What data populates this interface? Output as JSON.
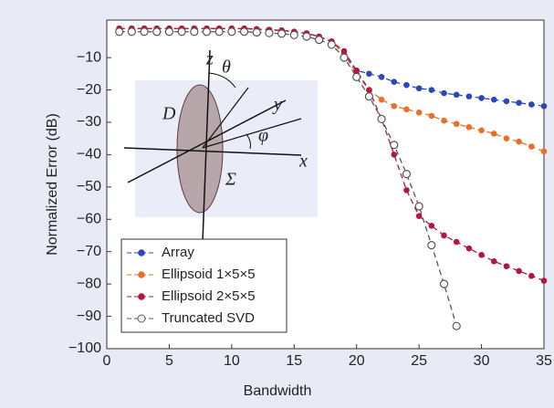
{
  "chart_data": {
    "type": "line",
    "x_label": "Bandwidth",
    "y_label": "Normalized Error (dB)",
    "x": [
      1,
      2,
      3,
      4,
      5,
      6,
      7,
      8,
      9,
      10,
      11,
      12,
      13,
      14,
      15,
      16,
      17,
      18,
      19,
      20,
      21,
      22,
      23,
      24,
      25,
      26,
      27,
      28,
      29,
      30,
      31,
      32,
      33,
      34,
      35
    ],
    "series": [
      {
        "name": "Array",
        "color": "#2b48b8",
        "marker": "filled",
        "values": [
          -1,
          -1,
          -1,
          -1,
          -1,
          -1,
          -1,
          -1,
          -1,
          -1,
          -1,
          -1.2,
          -1.4,
          -1.6,
          -2,
          -2.5,
          -3.5,
          -5,
          -9,
          -14,
          -15,
          -16,
          -17.5,
          -18.5,
          -19.5,
          -20,
          -21,
          -21.5,
          -22,
          -22.5,
          -23,
          -23.5,
          -24,
          -24.5,
          -25
        ]
      },
      {
        "name": "Ellipsoid 1×5×5",
        "color": "#e8702a",
        "marker": "filled",
        "values": [
          -1,
          -1,
          -1,
          -1,
          -1,
          -1,
          -1,
          -1,
          -1,
          -1,
          -1,
          -1.2,
          -1.4,
          -1.6,
          -2,
          -2.5,
          -3.5,
          -5,
          -9,
          -15,
          -20,
          -23,
          -25,
          -26,
          -27,
          -28,
          -29.5,
          -30.5,
          -31.5,
          -32.5,
          -33.5,
          -35,
          -36,
          -37.5,
          -39
        ]
      },
      {
        "name": "Ellipsoid 2×5×5",
        "color": "#b3173e",
        "marker": "filled",
        "values": [
          -1,
          -1,
          -1,
          -1,
          -1,
          -1,
          -1,
          -1,
          -1,
          -1,
          -1,
          -1.2,
          -1.4,
          -1.6,
          -2,
          -2.5,
          -3.5,
          -5,
          -8,
          -14,
          -20,
          -29,
          -40,
          -51,
          -59,
          -62,
          -65,
          -67,
          -69,
          -71,
          -73,
          -74.5,
          -76,
          -77.5,
          -79
        ]
      },
      {
        "name": "Truncated SVD",
        "color": "#555555",
        "marker": "open",
        "values": [
          -2,
          -2,
          -2,
          -2,
          -2,
          -2,
          -2,
          -2,
          -2,
          -2,
          -2,
          -2.2,
          -2.4,
          -2.6,
          -3,
          -3.5,
          -4.5,
          -6,
          -10,
          -16,
          -22,
          -29,
          -37,
          -46,
          -56,
          -68,
          -80,
          -93,
          null,
          null,
          null,
          null,
          null,
          null,
          null
        ]
      }
    ],
    "xlim": [
      0,
      35
    ],
    "ylim": [
      -100,
      1.6
    ],
    "xticks": [
      0,
      5,
      10,
      15,
      20,
      25,
      30,
      35
    ],
    "yticks": [
      {
        "value": -100,
        "label": "−100"
      },
      {
        "value": -90,
        "label": "−90"
      },
      {
        "value": -80,
        "label": "−80"
      },
      {
        "value": -70,
        "label": "−70"
      },
      {
        "value": -60,
        "label": "−60"
      },
      {
        "value": -50,
        "label": "−50"
      },
      {
        "value": -40,
        "label": "−40"
      },
      {
        "value": -30,
        "label": "−30"
      },
      {
        "value": -20,
        "label": "−20"
      },
      {
        "value": -10,
        "label": "−10"
      }
    ],
    "legend": "lower left",
    "annotations": [
      "z",
      "θ",
      "D",
      "y",
      "φ",
      "x",
      "Σ"
    ]
  }
}
